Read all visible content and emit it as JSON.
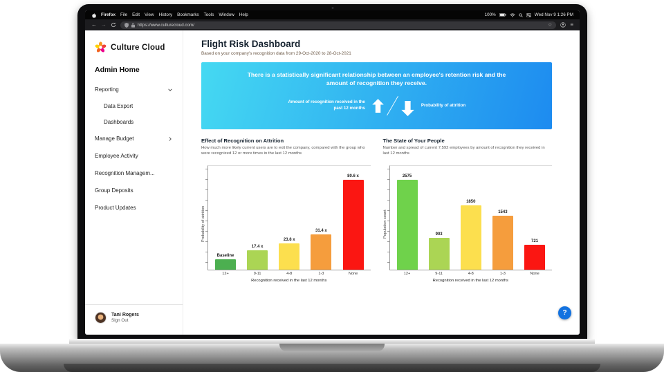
{
  "colors": {
    "banner_gradient_from": "#45d9f2",
    "banner_gradient_to": "#1d8bf0",
    "help_button": "#1272e0"
  },
  "menubar": {
    "items": [
      "Firefox",
      "File",
      "Edit",
      "View",
      "History",
      "Bookmarks",
      "Tools",
      "Window",
      "Help"
    ],
    "battery_percent": "100%",
    "clock": "Wed Nov 9 1:26 PM"
  },
  "browser": {
    "url": "https://www.culturecloud.com/",
    "icons": {
      "back": "←",
      "forward": "→",
      "star": "☆",
      "menu": "≡"
    }
  },
  "sidebar": {
    "logo_text": "Culture Cloud",
    "admin_home": "Admin Home",
    "items": [
      {
        "label": "Reporting",
        "chevron": "down"
      },
      {
        "label": "Data Export",
        "indent": true
      },
      {
        "label": "Dashboards",
        "indent": true
      },
      {
        "label": "Manage Budget",
        "chevron": "right"
      },
      {
        "label": "Employee Activity"
      },
      {
        "label": "Recognition Managem..."
      },
      {
        "label": "Group Deposits"
      },
      {
        "label": "Product Updates"
      }
    ],
    "user": {
      "name": "Tani Rogers",
      "sign_out": "Sign Out"
    }
  },
  "main": {
    "title": "Flight Risk Dashboard",
    "subtitle": "Based on your company's recognition data from 29-Oct-2020 to 28-Oct-2021",
    "banner": {
      "headline": "There is a statistically significant relationship between an employee's retention risk and the amount of recognition they receive.",
      "left_label": "Amount of recognition received in the past 12 months",
      "right_label": "Probability of attrition"
    },
    "help_label": "?"
  },
  "chart_data": [
    {
      "type": "bar",
      "title": "Effect of Recognition on Attrition",
      "subtitle": "How much more likely current users are to exit the company, compared with the group who were recognized 12 or more times in the last 12 months",
      "categories": [
        "12+",
        "9-11",
        "4-8",
        "1-3",
        "None"
      ],
      "values": [
        1,
        17.4,
        23.8,
        31.4,
        80.6
      ],
      "bar_labels": [
        "Baseline",
        "17.4 x",
        "23.8 x",
        "31.4 x",
        "80.6 x"
      ],
      "colors": [
        "#4caf50",
        "#abd554",
        "#fcdf4e",
        "#f59d3d",
        "#fb1612"
      ],
      "xlabel": "Recognition received in the last 12 months",
      "ylabel": "Probability of attrition",
      "grid": false,
      "legend": false
    },
    {
      "type": "bar",
      "title": "The State of Your People",
      "subtitle": "Number and spread of current 7,592 employees by amount of recognition they received in last 12 months",
      "categories": [
        "12+",
        "9-11",
        "4-8",
        "1-3",
        "None"
      ],
      "values": [
        2575,
        903,
        1850,
        1543,
        721
      ],
      "bar_labels": [
        "2575",
        "903",
        "1850",
        "1543",
        "721"
      ],
      "colors": [
        "#6fd24b",
        "#abd554",
        "#fcdf4e",
        "#f59d3d",
        "#fb1612"
      ],
      "xlabel": "Recognition received in the last 12 months",
      "ylabel": "Population count",
      "grid": false,
      "legend": false
    }
  ]
}
